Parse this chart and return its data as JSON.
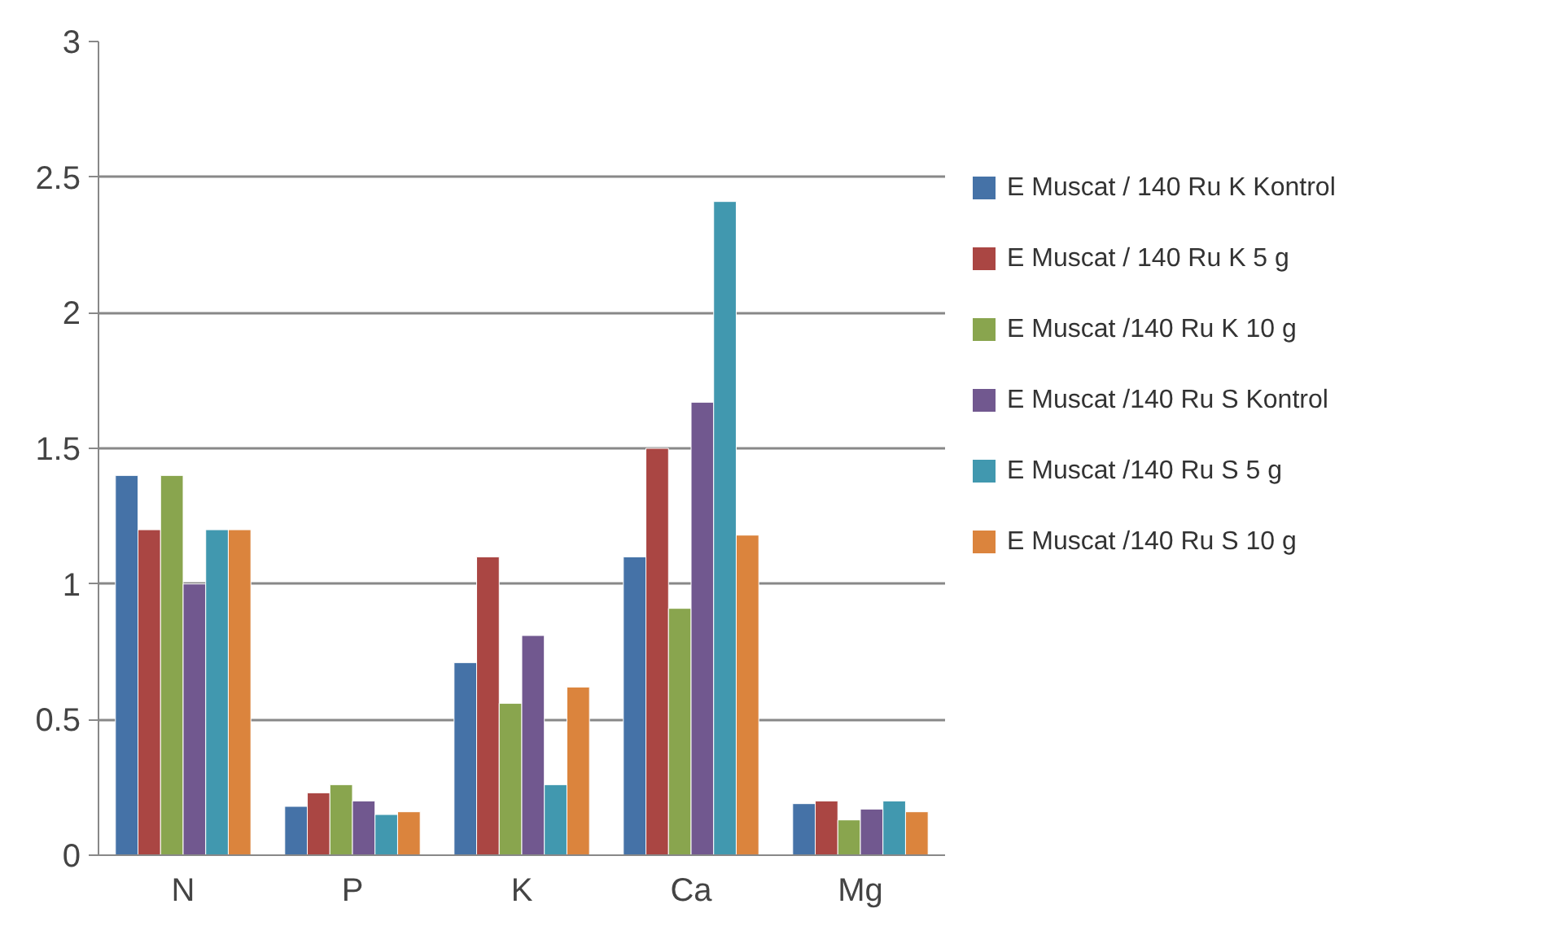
{
  "chart_data": {
    "type": "bar",
    "categories": [
      "N",
      "P",
      "K",
      "Ca",
      "Mg"
    ],
    "series": [
      {
        "name": "E Muscat / 140 Ru K Kontrol",
        "color": "#4572a7",
        "values": [
          1.4,
          0.18,
          0.71,
          1.1,
          0.19
        ]
      },
      {
        "name": "E Muscat / 140 Ru K 5 g",
        "color": "#aa4643",
        "values": [
          1.2,
          0.23,
          1.1,
          1.5,
          0.2
        ]
      },
      {
        "name": "E Muscat /140 Ru K 10 g",
        "color": "#89a54e",
        "values": [
          1.4,
          0.26,
          0.56,
          0.91,
          0.13
        ]
      },
      {
        "name": "E Muscat /140 Ru S Kontrol",
        "color": "#71588f",
        "values": [
          1.0,
          0.2,
          0.81,
          1.67,
          0.17
        ]
      },
      {
        "name": "E Muscat /140 Ru S 5 g",
        "color": "#4198af",
        "values": [
          1.2,
          0.15,
          0.26,
          2.41,
          0.2
        ]
      },
      {
        "name": "E Muscat /140 Ru S 10 g",
        "color": "#db843d",
        "values": [
          1.2,
          0.16,
          0.62,
          1.18,
          0.16
        ]
      }
    ],
    "ylim": [
      0,
      3
    ],
    "yticks": [
      0,
      0.5,
      1,
      1.5,
      2,
      2.5,
      3
    ],
    "grid": "y",
    "legend": "right"
  }
}
